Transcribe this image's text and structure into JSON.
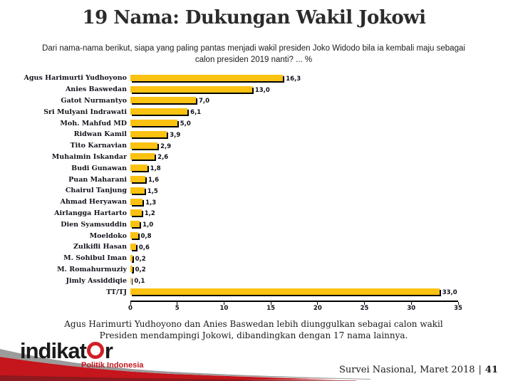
{
  "slide": {
    "title": "19 Nama: Dukungan Wakil Jokowi",
    "subtitle": "Dari nama-nama berikut, siapa yang paling pantas menjadi wakil presiden Joko Widodo bila ia kembali maju sebagai calon presiden 2019 nanti? ... %",
    "footer_note": "Agus Harimurti Yudhoyono dan Anies Baswedan lebih diunggulkan sebagai calon wakil Presiden mendampingi Jokowi, dibandingkan dengan 17 nama lainnya.",
    "footer_right": {
      "survey": "Survei Nasional, Maret 2018",
      "separator": "|",
      "page": "41"
    }
  },
  "logo": {
    "word_start": "indikat",
    "word_end": "r",
    "tagline": "Politik Indonesia",
    "colors": {
      "red": "#C4161C",
      "dark_red": "#8E191E",
      "gray": "#9B9B9B",
      "black": "#1A1A1A"
    }
  },
  "chart_data": {
    "type": "bar",
    "orientation": "horizontal",
    "title": "19 Nama: Dukungan Wakil Jokowi",
    "categories": [
      "Agus Harimurti Yudhoyono",
      "Anies Baswedan",
      "Gatot Nurmantyo",
      "Sri Mulyani Indrawati",
      "Moh. Mahfud MD",
      "Ridwan Kamil",
      "Tito Karnavian",
      "Muhaimin Iskandar",
      "Budi Gunawan",
      "Puan Maharani",
      "Chairul Tanjung",
      "Ahmad Heryawan",
      "Airlangga Hartarto",
      "Dien Syamsuddin",
      "Moeldoko",
      "Zulkifli Hasan",
      "M. Sohibul Iman",
      "M. Romahurmuziy",
      "Jimly Assiddiqie",
      "TT/TJ"
    ],
    "values": [
      16.3,
      13.0,
      7.0,
      6.1,
      5.0,
      3.9,
      2.9,
      2.6,
      1.8,
      1.6,
      1.5,
      1.3,
      1.2,
      1.0,
      0.8,
      0.6,
      0.2,
      0.2,
      0.1,
      33.0
    ],
    "value_labels": [
      "16,3",
      "13,0",
      "7,0",
      "6,1",
      "5,0",
      "3,9",
      "2,9",
      "2,6",
      "1,8",
      "1,6",
      "1,5",
      "1,3",
      "1,2",
      "1,0",
      "0,8",
      "0,6",
      "0,2",
      "0,2",
      "0,1",
      "33,0"
    ],
    "xlabel": "",
    "ylabel": "",
    "xlim": [
      0,
      35
    ],
    "x_ticks": [
      0,
      5,
      10,
      15,
      20,
      25,
      30,
      35
    ],
    "bar_color": "#FCC211",
    "bar_shadow_color": "#000000",
    "grid": false,
    "legend": false
  }
}
